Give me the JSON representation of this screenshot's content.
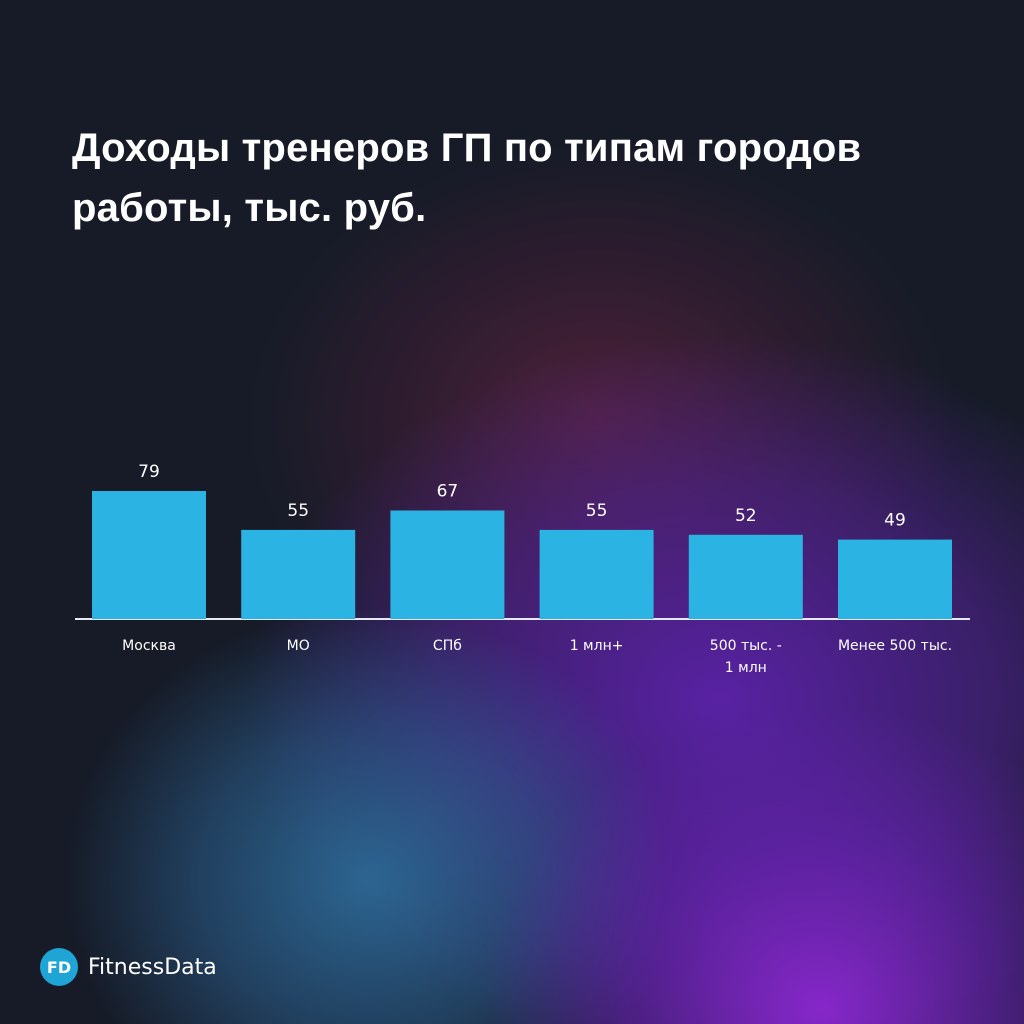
{
  "title": "Доходы тренеров ГП по типам городов работы, тыс. руб.",
  "chart_data": {
    "type": "bar",
    "title": "Доходы тренеров ГП по типам городов работы, тыс. руб.",
    "categories": [
      [
        "Москва"
      ],
      [
        "МО"
      ],
      [
        "СПб"
      ],
      [
        "1 млн+"
      ],
      [
        "500 тыс. -",
        "1 млн"
      ],
      [
        "Менее 500 тыс."
      ]
    ],
    "values": [
      79,
      55,
      67,
      55,
      52,
      49
    ],
    "data_labels": [
      "79",
      "55",
      "67",
      "55",
      "52",
      "49"
    ],
    "xlabel": "",
    "ylabel": "",
    "grid": false,
    "bar_color": "#2bb4e3"
  },
  "logo": {
    "badge": "FD",
    "name": "FitnessData",
    "color": "#1fa4d6"
  }
}
